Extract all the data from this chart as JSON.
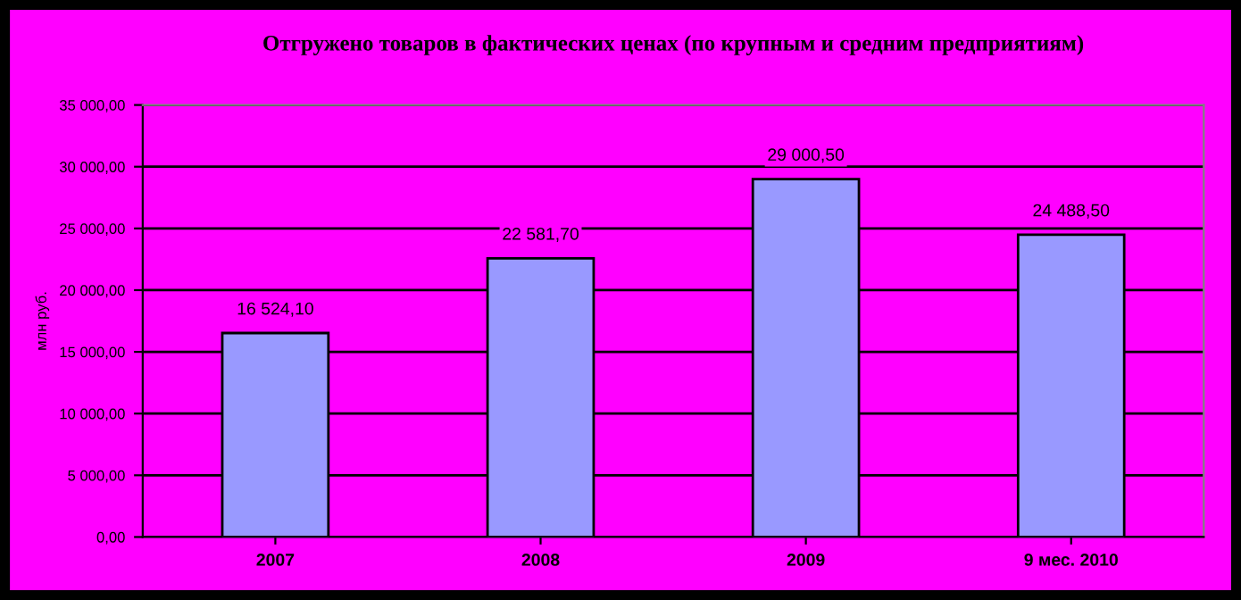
{
  "chart_data": {
    "type": "bar",
    "title": "Отгружено товаров в фактических ценах (по крупным и средним предприятиям)",
    "ylabel": "млн руб.",
    "categories": [
      "2007",
      "2008",
      "2009",
      "9 мес. 2010"
    ],
    "values": [
      16524.1,
      22581.7,
      29000.5,
      24488.5
    ],
    "value_labels": [
      "16 524,10",
      "22 581,70",
      "29 000,50",
      "24 488,50"
    ],
    "color": "#9999ff",
    "ylim": [
      0,
      35000
    ],
    "yticks": [
      {
        "value": 0,
        "label": "0,00"
      },
      {
        "value": 5000,
        "label": "5 000,00"
      },
      {
        "value": 10000,
        "label": "10 000,00"
      },
      {
        "value": 15000,
        "label": "15 000,00"
      },
      {
        "value": 20000,
        "label": "20 000,00"
      },
      {
        "value": 25000,
        "label": "25 000,00"
      },
      {
        "value": 30000,
        "label": "30 000,00"
      },
      {
        "value": 35000,
        "label": "35 000,00"
      }
    ],
    "grid": "y"
  }
}
